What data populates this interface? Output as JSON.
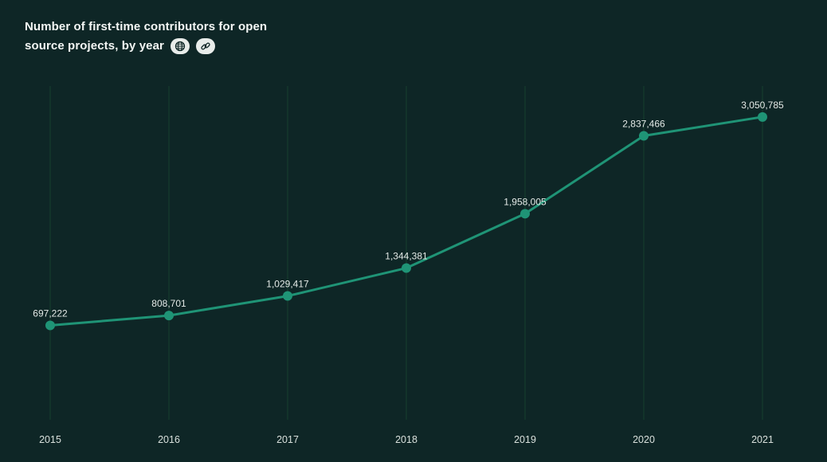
{
  "title": {
    "line1": "Number of first-time contributors for open",
    "line2": "source projects, by year"
  },
  "icons": {
    "globe": "globe-icon",
    "link": "link-icon"
  },
  "colors": {
    "background": "#0e2626",
    "line": "#1f9476",
    "marker": "#1f9476",
    "gridline": "#16402f",
    "text": "#e6ece9"
  },
  "chart_data": {
    "type": "line",
    "title": "Number of first-time contributors for open source projects, by year",
    "xlabel": "",
    "ylabel": "",
    "categories": [
      "2015",
      "2016",
      "2017",
      "2018",
      "2019",
      "2020",
      "2021"
    ],
    "values": [
      697222,
      808701,
      1029417,
      1344381,
      1958005,
      2837466,
      3050785
    ],
    "value_labels": [
      "697,222",
      "808,701",
      "1,029,417",
      "1,344,381",
      "1,958,005",
      "2,837,466",
      "3,050,785"
    ],
    "ylim": [
      0,
      3400000
    ],
    "grid": "vertical"
  }
}
